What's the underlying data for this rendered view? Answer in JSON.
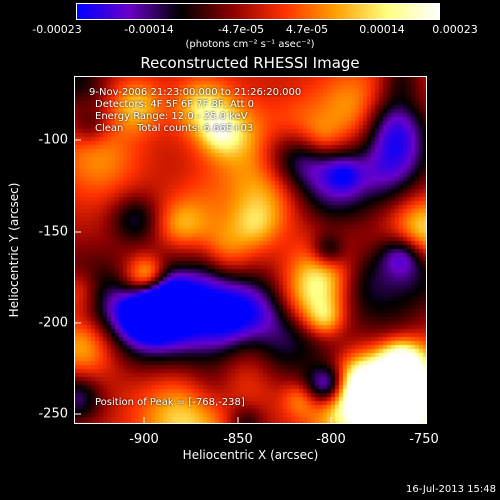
{
  "colorbar": {
    "tick_labels": [
      "-0.00023",
      "-0.00014",
      "-4.7e-05",
      "4.7e-05",
      "0.00014",
      "0.00023"
    ],
    "tick_values": [
      -0.00023,
      -0.00014,
      -4.7e-05,
      4.7e-05,
      0.00014,
      0.00023
    ],
    "range": [
      -0.00023,
      0.00023
    ],
    "units": "(photons cm⁻² s⁻¹ asec⁻²)",
    "colors": [
      "#0000ff",
      "#6a00c8",
      "#000000",
      "#8c0000",
      "#ff3000",
      "#ffa000",
      "#ffff80",
      "#ffffff"
    ]
  },
  "chart_data": {
    "type": "heatmap",
    "title": "Reconstructed RHESSI Image",
    "xlabel": "Heliocentric X (arcsec)",
    "ylabel": "Heliocentric Y (arcsec)",
    "xlim": [
      -937,
      -747
    ],
    "ylim": [
      -256,
      -68
    ],
    "x_ticks": [
      -900,
      -850,
      -800,
      -750
    ],
    "y_ticks": [
      -100,
      -150,
      -200,
      -250
    ],
    "peak_position": [
      -768,
      -238
    ],
    "annotations": {
      "time_range": "9-Nov-2006 21:23:00.000 to 21:26:20.000",
      "detectors": "Detectors: 4F 5F 6F 7F 8F, Att 0",
      "energy": "Energy Range: 12.0 - 25.0 keV",
      "method": "Clean",
      "total_counts": "Total counts: 6.66E+03",
      "peak": "Position of Peak = [-768,-238]"
    }
  },
  "footer": {
    "timestamp": "16-Jul-2013 15:48"
  }
}
